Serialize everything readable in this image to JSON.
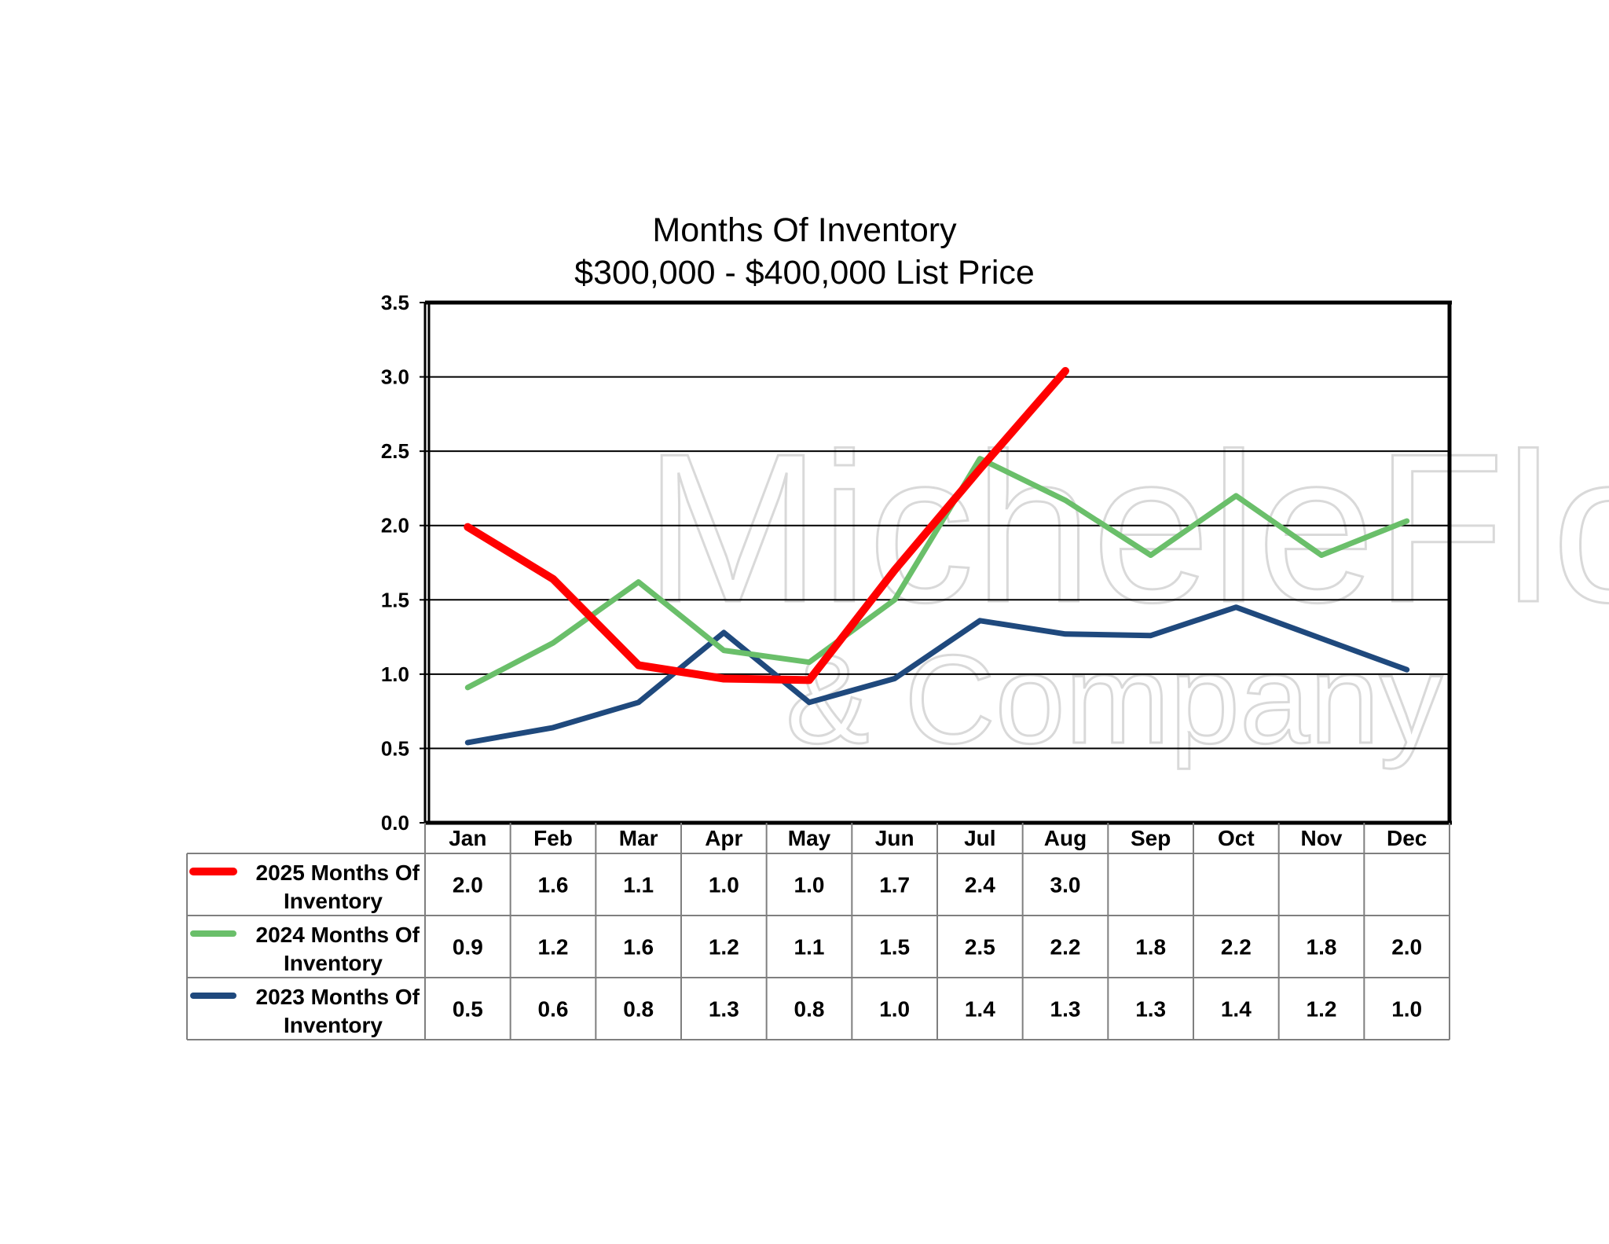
{
  "chart_data": {
    "type": "line",
    "title_lines": [
      "Months Of Inventory",
      "$300,000 - $400,000 List Price"
    ],
    "categories": [
      "Jan",
      "Feb",
      "Mar",
      "Apr",
      "May",
      "Jun",
      "Jul",
      "Aug",
      "Sep",
      "Oct",
      "Nov",
      "Dec"
    ],
    "ylim": [
      0,
      3.5
    ],
    "yticks": [
      "0.0",
      "0.5",
      "1.0",
      "1.5",
      "2.0",
      "2.5",
      "3.0",
      "3.5"
    ],
    "grid": true,
    "legend_placement": "data table below chart",
    "series": [
      {
        "name_lines": [
          "2025 Months Of",
          "Inventory"
        ],
        "color": "#ff0000",
        "values": [
          1.99,
          1.64,
          1.06,
          0.97,
          0.96,
          1.7,
          2.38,
          3.04,
          null,
          null,
          null,
          null
        ],
        "labels": [
          "2.0",
          "1.6",
          "1.1",
          "1.0",
          "1.0",
          "1.7",
          "2.4",
          "3.0",
          "",
          "",
          "",
          ""
        ]
      },
      {
        "name_lines": [
          "2024 Months Of",
          "Inventory"
        ],
        "color": "#6abf6a",
        "values": [
          0.91,
          1.21,
          1.62,
          1.16,
          1.08,
          1.5,
          2.45,
          2.17,
          1.8,
          2.2,
          1.8,
          2.03
        ],
        "labels": [
          "0.9",
          "1.2",
          "1.6",
          "1.2",
          "1.1",
          "1.5",
          "2.5",
          "2.2",
          "1.8",
          "2.2",
          "1.8",
          "2.0"
        ]
      },
      {
        "name_lines": [
          "2023 Months Of",
          "Inventory"
        ],
        "color": "#1f497d",
        "values": [
          0.54,
          0.64,
          0.81,
          1.28,
          0.81,
          0.97,
          1.36,
          1.27,
          1.26,
          1.45,
          1.24,
          1.03
        ],
        "labels": [
          "0.5",
          "0.6",
          "0.8",
          "1.3",
          "0.8",
          "1.0",
          "1.4",
          "1.3",
          "1.3",
          "1.4",
          "1.2",
          "1.0"
        ]
      }
    ]
  },
  "watermark": {
    "line1": "MicheleFlory",
    "line2": "& Company"
  }
}
